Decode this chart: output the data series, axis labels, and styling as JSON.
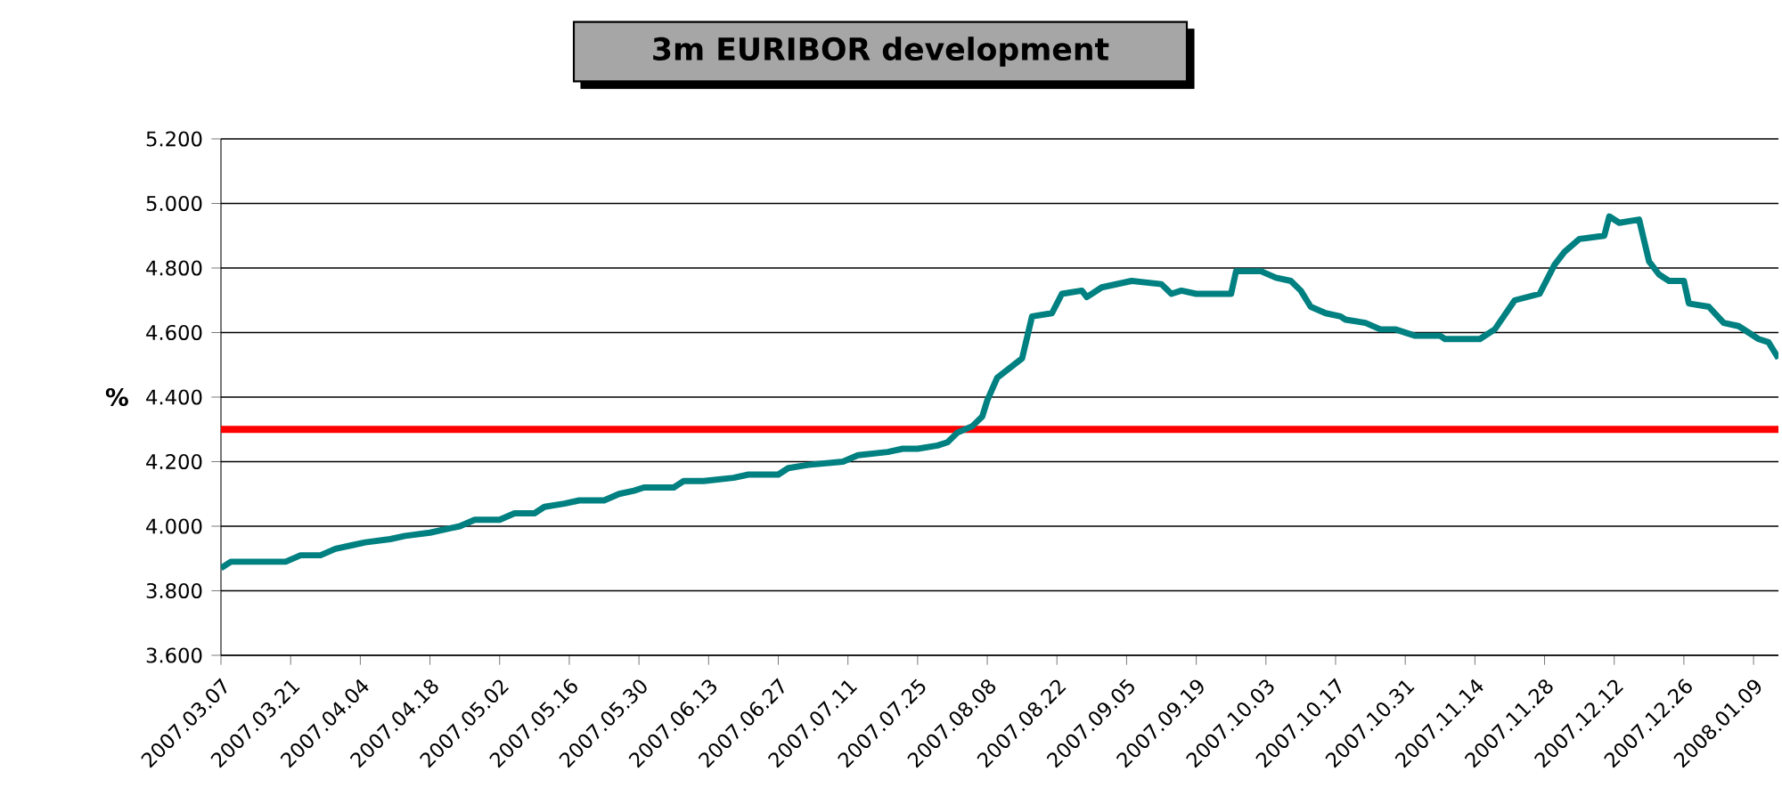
{
  "chart_data": {
    "type": "line",
    "title": "3m EURIBOR development",
    "ylabel": "%",
    "x": [
      "2007-03-07",
      "2007-03-09",
      "2007-03-14",
      "2007-03-20",
      "2007-03-23",
      "2007-03-27",
      "2007-03-30",
      "2007-04-02",
      "2007-04-05",
      "2007-04-10",
      "2007-04-13",
      "2007-04-18",
      "2007-04-24",
      "2007-04-27",
      "2007-05-02",
      "2007-05-05",
      "2007-05-09",
      "2007-05-11",
      "2007-05-15",
      "2007-05-18",
      "2007-05-23",
      "2007-05-26",
      "2007-05-29",
      "2007-05-31",
      "2007-06-06",
      "2007-06-08",
      "2007-06-12",
      "2007-06-18",
      "2007-06-21",
      "2007-06-27",
      "2007-06-29",
      "2007-07-03",
      "2007-07-10",
      "2007-07-13",
      "2007-07-19",
      "2007-07-22",
      "2007-07-25",
      "2007-07-29",
      "2007-07-31",
      "2007-08-02",
      "2007-08-05",
      "2007-08-07",
      "2007-08-08",
      "2007-08-10",
      "2007-08-15",
      "2007-08-17",
      "2007-08-21",
      "2007-08-23",
      "2007-08-27",
      "2007-08-28",
      "2007-08-31",
      "2007-09-06",
      "2007-09-12",
      "2007-09-14",
      "2007-09-16",
      "2007-09-19",
      "2007-09-26",
      "2007-09-27",
      "2007-10-02",
      "2007-10-05",
      "2007-10-08",
      "2007-10-10",
      "2007-10-12",
      "2007-10-15",
      "2007-10-18",
      "2007-10-19",
      "2007-10-23",
      "2007-10-26",
      "2007-10-29",
      "2007-11-02",
      "2007-11-07",
      "2007-11-08",
      "2007-11-15",
      "2007-11-18",
      "2007-11-22",
      "2007-11-27",
      "2007-11-30",
      "2007-12-02",
      "2007-12-05",
      "2007-12-10",
      "2007-12-11",
      "2007-12-13",
      "2007-12-17",
      "2007-12-19",
      "2007-12-21",
      "2007-12-23",
      "2007-12-26",
      "2007-12-27",
      "2007-12-31",
      "2008-01-03",
      "2008-01-06",
      "2008-01-10",
      "2008-01-12",
      "2008-01-14"
    ],
    "series": [
      {
        "color": "#008080",
        "values": [
          3.87,
          3.89,
          3.89,
          3.89,
          3.91,
          3.91,
          3.93,
          3.94,
          3.95,
          3.96,
          3.97,
          3.98,
          4.0,
          4.02,
          4.02,
          4.04,
          4.04,
          4.06,
          4.07,
          4.08,
          4.08,
          4.1,
          4.11,
          4.12,
          4.12,
          4.14,
          4.14,
          4.15,
          4.16,
          4.16,
          4.18,
          4.19,
          4.2,
          4.22,
          4.23,
          4.24,
          4.24,
          4.25,
          4.26,
          4.29,
          4.31,
          4.34,
          4.39,
          4.46,
          4.52,
          4.65,
          4.66,
          4.72,
          4.73,
          4.71,
          4.74,
          4.76,
          4.75,
          4.72,
          4.73,
          4.72,
          4.72,
          4.79,
          4.79,
          4.77,
          4.76,
          4.73,
          4.68,
          4.66,
          4.65,
          4.64,
          4.63,
          4.61,
          4.61,
          4.59,
          4.59,
          4.58,
          4.58,
          4.61,
          4.7,
          4.72,
          4.81,
          4.85,
          4.89,
          4.9,
          4.96,
          4.94,
          4.95,
          4.82,
          4.78,
          4.76,
          4.76,
          4.69,
          4.68,
          4.63,
          4.62,
          4.58,
          4.57,
          4.52
        ]
      }
    ],
    "xlim": [
      "2007-03-07",
      "2008-01-14"
    ],
    "xticks": [
      {
        "value": "2007-03-07",
        "label": "2007.03.07"
      },
      {
        "value": "2007-03-21",
        "label": "2007.03.21"
      },
      {
        "value": "2007-04-04",
        "label": "2007.04.04"
      },
      {
        "value": "2007-04-18",
        "label": "2007.04.18"
      },
      {
        "value": "2007-05-02",
        "label": "2007.05.02"
      },
      {
        "value": "2007-05-16",
        "label": "2007.05.16"
      },
      {
        "value": "2007-05-30",
        "label": "2007.05.30"
      },
      {
        "value": "2007-06-13",
        "label": "2007.06.13"
      },
      {
        "value": "2007-06-27",
        "label": "2007.06.27"
      },
      {
        "value": "2007-07-11",
        "label": "2007.07.11"
      },
      {
        "value": "2007-07-25",
        "label": "2007.07.25"
      },
      {
        "value": "2007-08-08",
        "label": "2007.08.08"
      },
      {
        "value": "2007-08-22",
        "label": "2007.08.22"
      },
      {
        "value": "2007-09-05",
        "label": "2007.09.05"
      },
      {
        "value": "2007-09-19",
        "label": "2007.09.19"
      },
      {
        "value": "2007-10-03",
        "label": "2007.10.03"
      },
      {
        "value": "2007-10-17",
        "label": "2007.10.17"
      },
      {
        "value": "2007-10-31",
        "label": "2007.10.31"
      },
      {
        "value": "2007-11-14",
        "label": "2007.11.14"
      },
      {
        "value": "2007-11-28",
        "label": "2007.11.28"
      },
      {
        "value": "2007-12-12",
        "label": "2007.12.12"
      },
      {
        "value": "2007-12-26",
        "label": "2007.12.26"
      },
      {
        "value": "2008-01-09",
        "label": "2008.01.09"
      }
    ],
    "ylim": [
      3.6,
      5.2
    ],
    "yticks": [
      {
        "value": 3.6,
        "label": "3.600"
      },
      {
        "value": 3.8,
        "label": "3.800"
      },
      {
        "value": 4.0,
        "label": "4.000"
      },
      {
        "value": 4.2,
        "label": "4.200"
      },
      {
        "value": 4.4,
        "label": "4.400"
      },
      {
        "value": 4.6,
        "label": "4.600"
      },
      {
        "value": 4.8,
        "label": "4.800"
      },
      {
        "value": 5.0,
        "label": "5.000"
      },
      {
        "value": 5.2,
        "label": "5.200"
      }
    ],
    "ref_lines": [
      {
        "axis": "y",
        "value": 4.3,
        "color": "#ff0000"
      }
    ],
    "grid": "y",
    "marker": "none",
    "line_style": "solid"
  }
}
